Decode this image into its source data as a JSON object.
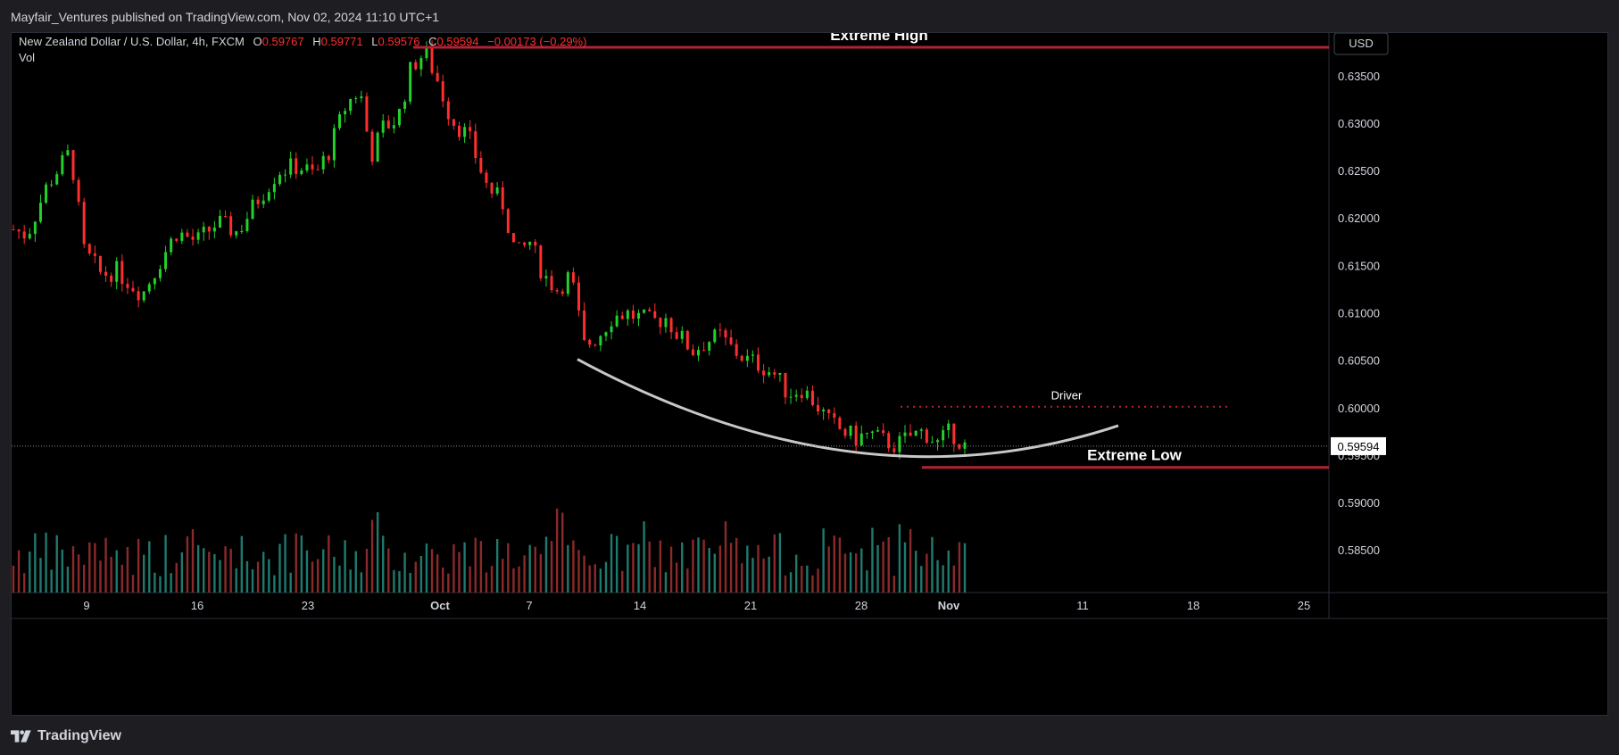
{
  "header": {
    "published": "Mayfair_Ventures published on TradingView.com, Nov 02, 2024 11:10 UTC+1"
  },
  "legend": {
    "symbol": "New Zealand Dollar / U.S. Dollar, 4h, FXCM",
    "o_label": "O",
    "o_value": "0.59767",
    "h_label": "H",
    "h_value": "0.59771",
    "l_label": "L",
    "l_value": "0.59576",
    "c_label": "C",
    "c_value": "0.59594",
    "change": "−0.00173 (−0.29%)",
    "vol_label": "Vol"
  },
  "currency": "USD",
  "footer": {
    "brand": "TradingView"
  },
  "colors": {
    "up": "#22d12a",
    "down": "#ff2e2e",
    "vol_up": "#1f7a6e",
    "vol_down": "#8b2a2a",
    "level": "#b22234",
    "arc": "#c8c8c8"
  },
  "chart_data": {
    "type": "candlestick",
    "symbol": "NZDUSD",
    "timeframe": "4h",
    "y_axis": {
      "ticks": [
        "0.63500",
        "0.63000",
        "0.62500",
        "0.62000",
        "0.61500",
        "0.61000",
        "0.60500",
        "0.60000",
        "0.59500",
        "0.59000",
        "0.58500"
      ],
      "ylim": [
        0.5805,
        0.6395
      ]
    },
    "x_axis": {
      "ticks": [
        "9",
        "16",
        "23",
        "Oct",
        "7",
        "14",
        "21",
        "28",
        "Nov",
        "11",
        "18",
        "25"
      ]
    },
    "last_price": "0.59594",
    "annotations": [
      {
        "label": "Extreme High",
        "type": "horizontal_level",
        "price": 0.638
      },
      {
        "label": "Extreme Low",
        "type": "horizontal_level",
        "price": 0.5937
      },
      {
        "label": "Driver",
        "type": "dotted_level",
        "price": 0.6001
      },
      {
        "label": "",
        "type": "arc_rounding_bottom",
        "low_price": 0.5928
      }
    ],
    "path_points": [
      [
        0,
        0.6188
      ],
      [
        10,
        0.6182
      ],
      [
        25,
        0.6235
      ],
      [
        42,
        0.627
      ],
      [
        52,
        0.6165
      ],
      [
        65,
        0.614
      ],
      [
        75,
        0.6145
      ],
      [
        95,
        0.612
      ],
      [
        110,
        0.616
      ],
      [
        120,
        0.6185
      ],
      [
        135,
        0.6175
      ],
      [
        150,
        0.6195
      ],
      [
        165,
        0.6185
      ],
      [
        180,
        0.622
      ],
      [
        195,
        0.625
      ],
      [
        210,
        0.6255
      ],
      [
        222,
        0.6245
      ],
      [
        232,
        0.627
      ],
      [
        245,
        0.632
      ],
      [
        255,
        0.6335
      ],
      [
        263,
        0.6265
      ],
      [
        272,
        0.6295
      ],
      [
        283,
        0.6305
      ],
      [
        293,
        0.636
      ],
      [
        303,
        0.6375
      ],
      [
        312,
        0.6345
      ],
      [
        322,
        0.6305
      ],
      [
        335,
        0.6285
      ],
      [
        348,
        0.6235
      ],
      [
        360,
        0.6215
      ],
      [
        370,
        0.616
      ],
      [
        380,
        0.6175
      ],
      [
        390,
        0.614
      ],
      [
        400,
        0.6125
      ],
      [
        410,
        0.614
      ],
      [
        420,
        0.6065
      ],
      [
        430,
        0.6075
      ],
      [
        440,
        0.6095
      ],
      [
        450,
        0.61
      ],
      [
        460,
        0.6095
      ],
      [
        470,
        0.609
      ],
      [
        480,
        0.6095
      ],
      [
        490,
        0.6075
      ],
      [
        500,
        0.606
      ],
      [
        510,
        0.607
      ],
      [
        520,
        0.6075
      ],
      [
        530,
        0.606
      ],
      [
        540,
        0.605
      ],
      [
        550,
        0.6045
      ],
      [
        560,
        0.6035
      ],
      [
        570,
        0.6015
      ],
      [
        580,
        0.602
      ],
      [
        590,
        0.6005
      ],
      [
        600,
        0.5985
      ],
      [
        610,
        0.5975
      ],
      [
        620,
        0.5968
      ],
      [
        630,
        0.5972
      ],
      [
        640,
        0.5965
      ],
      [
        650,
        0.596
      ],
      [
        660,
        0.597
      ],
      [
        670,
        0.5975
      ],
      [
        680,
        0.5962
      ],
      [
        690,
        0.5975
      ],
      [
        700,
        0.5959
      ]
    ]
  }
}
